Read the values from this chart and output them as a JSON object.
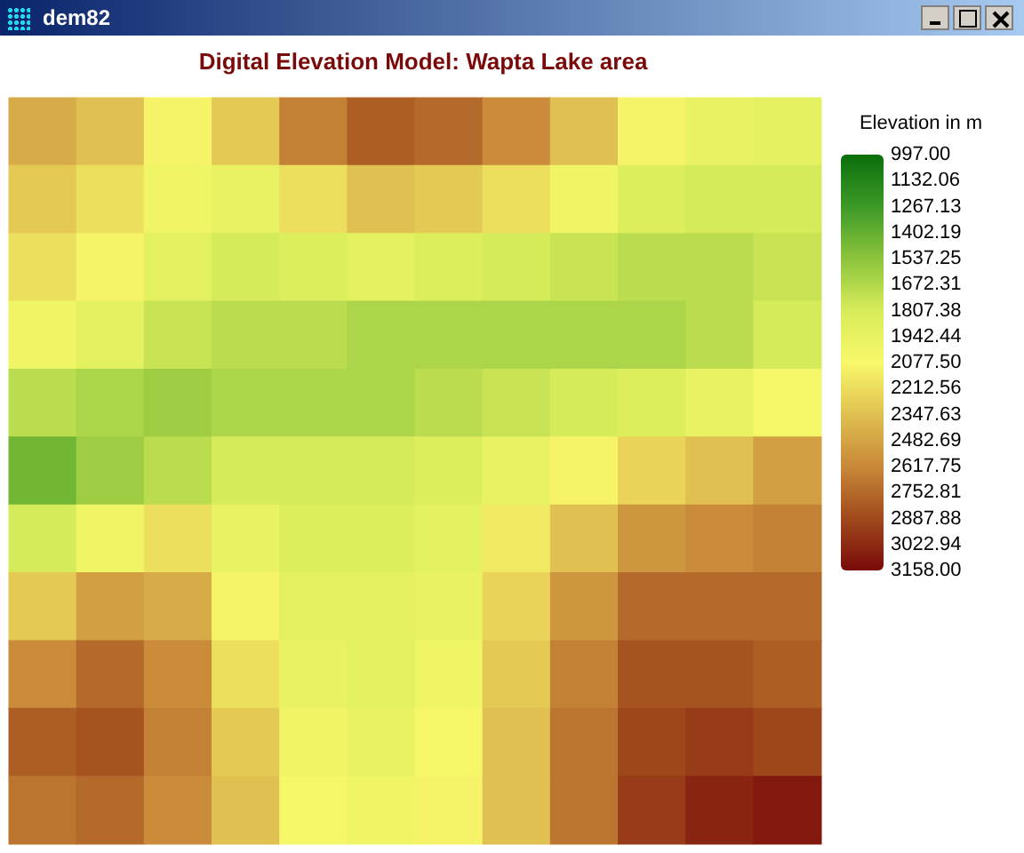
{
  "chart_data": {
    "type": "heatmap",
    "title": "Digital Elevation Model: Wapta Lake area",
    "clabel": "Elevation in m",
    "annotations": [
      "dem82"
    ],
    "tick_labels": false,
    "categories": [
      null,
      null,
      null,
      null,
      null,
      null,
      null,
      null,
      null,
      null,
      null,
      null
    ],
    "y_categories": [
      null,
      null,
      null,
      null,
      null,
      null,
      null,
      null,
      null,
      null,
      null
    ],
    "cells": [
      [
        2450,
        2350,
        2100,
        2300,
        2650,
        2800,
        2750,
        2600,
        2350,
        2100,
        1950,
        1900
      ],
      [
        2300,
        2200,
        2000,
        1950,
        2200,
        2350,
        2300,
        2200,
        2000,
        1850,
        1800,
        1800
      ],
      [
        2200,
        2100,
        1900,
        1800,
        1850,
        1900,
        1850,
        1800,
        1750,
        1700,
        1700,
        1750
      ],
      [
        2000,
        1900,
        1750,
        1700,
        1700,
        1650,
        1650,
        1650,
        1650,
        1650,
        1700,
        1800
      ],
      [
        1700,
        1650,
        1600,
        1650,
        1650,
        1650,
        1700,
        1750,
        1800,
        1850,
        1950,
        2050
      ],
      [
        1450,
        1600,
        1700,
        1800,
        1800,
        1800,
        1850,
        1950,
        2100,
        2250,
        2350,
        2500
      ],
      [
        1800,
        2000,
        2200,
        1950,
        1850,
        1850,
        1900,
        2150,
        2350,
        2550,
        2600,
        2650
      ],
      [
        2300,
        2500,
        2450,
        2100,
        1900,
        1900,
        1950,
        2250,
        2550,
        2750,
        2750,
        2750
      ],
      [
        2600,
        2750,
        2600,
        2200,
        1950,
        1900,
        2000,
        2300,
        2650,
        2850,
        2850,
        2800
      ],
      [
        2800,
        2850,
        2650,
        2300,
        2000,
        1950,
        2050,
        2350,
        2700,
        2900,
        2950,
        2900
      ],
      [
        2700,
        2750,
        2600,
        2350,
        2050,
        2000,
        2100,
        2350,
        2700,
        2950,
        3050,
        3100
      ]
    ],
    "clim": [
      997,
      3158
    ],
    "cticks": [
      {
        "value": 997,
        "label": "997.00"
      },
      {
        "value": 1132.06,
        "label": "1132.06"
      },
      {
        "value": 1267.13,
        "label": "1267.13"
      },
      {
        "value": 1402.19,
        "label": "1402.19"
      },
      {
        "value": 1537.25,
        "label": "1537.25"
      },
      {
        "value": 1672.31,
        "label": "1672.31"
      },
      {
        "value": 1807.38,
        "label": "1807.38"
      },
      {
        "value": 1942.44,
        "label": "1942.44"
      },
      {
        "value": 2077.5,
        "label": "2077.50"
      },
      {
        "value": 2212.56,
        "label": "2212.56"
      },
      {
        "value": 2347.63,
        "label": "2347.63"
      },
      {
        "value": 2482.69,
        "label": "2482.69"
      },
      {
        "value": 2617.75,
        "label": "2617.75"
      },
      {
        "value": 2752.81,
        "label": "2752.81"
      },
      {
        "value": 2887.88,
        "label": "2887.88"
      },
      {
        "value": 3022.94,
        "label": "3022.94"
      },
      {
        "value": 3158,
        "label": "3158.00"
      }
    ]
  }
}
